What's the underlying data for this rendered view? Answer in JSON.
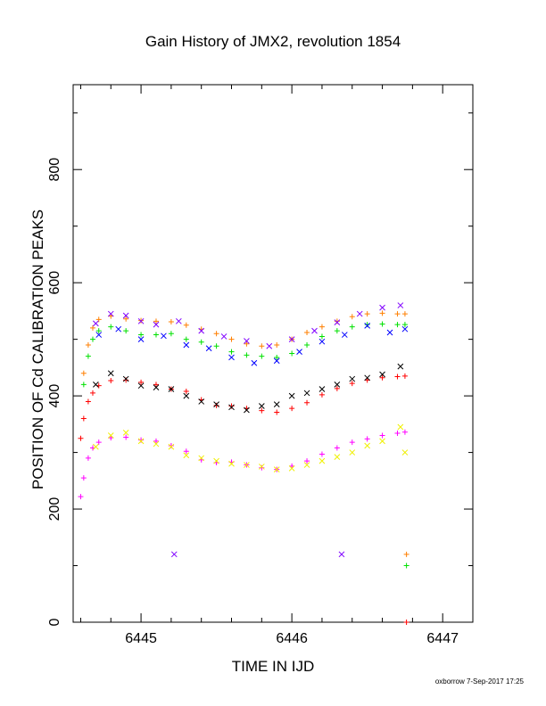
{
  "chart_data": {
    "type": "scatter",
    "title": "Gain History of JMX2, revolution 1854",
    "xlabel": "TIME IN IJD",
    "ylabel": "POSITION OF Cd CALIBRATION PEAKS",
    "xlim": [
      6444.55,
      6447.2
    ],
    "ylim": [
      0,
      950
    ],
    "x_ticks": [
      6445,
      6446,
      6447
    ],
    "y_ticks": [
      0,
      200,
      400,
      600,
      800
    ],
    "grid": false,
    "legend": "none",
    "footer": "oxborrow  7-Sep-2017 17:25",
    "colors": {
      "top_fit": "#ff7f00",
      "top_raw": "#8000ff",
      "upper_fit": "#00e000",
      "upper_raw": "#0000ff",
      "mid_fit": "#ff0000",
      "mid_raw": "#000000",
      "low_fit": "#ff00ff",
      "low_raw": "#f0f000"
    },
    "series": [
      {
        "color_key": "top_fit",
        "marker": "plus",
        "x": [
          6444.62,
          6444.65,
          6444.68,
          6444.72,
          6444.8,
          6444.9,
          6445.0,
          6445.1,
          6445.2,
          6445.3,
          6445.4,
          6445.5,
          6445.6,
          6445.7,
          6445.8,
          6445.9,
          6446.0,
          6446.1,
          6446.2,
          6446.3,
          6446.4,
          6446.5,
          6446.6,
          6446.7,
          6446.75
        ],
        "y": [
          440,
          490,
          520,
          535,
          541,
          536,
          533,
          532,
          531,
          525,
          518,
          510,
          500,
          492,
          488,
          490,
          500,
          512,
          522,
          532,
          540,
          545,
          546,
          545,
          545
        ]
      },
      {
        "color_key": "top_raw",
        "marker": "cross",
        "x": [
          6444.7,
          6444.8,
          6444.9,
          6445.0,
          6445.1,
          6445.25,
          6445.4,
          6445.55,
          6445.7,
          6445.85,
          6446.0,
          6446.15,
          6446.3,
          6446.45,
          6446.6,
          6446.72
        ],
        "y": [
          528,
          545,
          542,
          532,
          526,
          532,
          515,
          505,
          497,
          488,
          500,
          515,
          530,
          545,
          556,
          560
        ]
      },
      {
        "color_key": "upper_fit",
        "marker": "plus",
        "x": [
          6444.62,
          6444.65,
          6444.68,
          6444.72,
          6444.8,
          6444.9,
          6445.0,
          6445.1,
          6445.2,
          6445.3,
          6445.4,
          6445.5,
          6445.6,
          6445.7,
          6445.8,
          6445.9,
          6446.0,
          6446.1,
          6446.2,
          6446.3,
          6446.4,
          6446.5,
          6446.6,
          6446.7,
          6446.75
        ],
        "y": [
          420,
          470,
          500,
          515,
          522,
          515,
          508,
          508,
          510,
          500,
          495,
          488,
          478,
          472,
          470,
          468,
          475,
          490,
          505,
          515,
          522,
          526,
          527,
          526,
          526
        ]
      },
      {
        "color_key": "upper_raw",
        "marker": "cross",
        "x": [
          6444.72,
          6444.85,
          6445.0,
          6445.15,
          6445.3,
          6445.45,
          6445.6,
          6445.75,
          6445.9,
          6446.05,
          6446.2,
          6446.35,
          6446.5,
          6446.65,
          6446.75
        ],
        "y": [
          508,
          518,
          500,
          506,
          490,
          484,
          468,
          458,
          462,
          478,
          496,
          508,
          524,
          512,
          518
        ]
      },
      {
        "color_key": "mid_fit",
        "marker": "plus",
        "x": [
          6444.6,
          6444.62,
          6444.65,
          6444.68,
          6444.72,
          6444.8,
          6444.9,
          6445.0,
          6445.1,
          6445.2,
          6445.3,
          6445.4,
          6445.5,
          6445.6,
          6445.7,
          6445.8,
          6445.9,
          6446.0,
          6446.1,
          6446.2,
          6446.3,
          6446.4,
          6446.5,
          6446.6,
          6446.7,
          6446.75
        ],
        "y": [
          325,
          360,
          390,
          405,
          418,
          427,
          428,
          424,
          420,
          412,
          408,
          393,
          383,
          382,
          378,
          374,
          371,
          378,
          388,
          402,
          413,
          422,
          428,
          432,
          434,
          435
        ]
      },
      {
        "color_key": "mid_raw",
        "marker": "cross",
        "x": [
          6444.7,
          6444.8,
          6444.9,
          6445.0,
          6445.1,
          6445.2,
          6445.3,
          6445.4,
          6445.5,
          6445.6,
          6445.7,
          6445.8,
          6445.9,
          6446.0,
          6446.1,
          6446.2,
          6446.3,
          6446.4,
          6446.5,
          6446.6,
          6446.72
        ],
        "y": [
          420,
          440,
          430,
          418,
          415,
          412,
          400,
          390,
          385,
          380,
          375,
          382,
          385,
          400,
          405,
          412,
          420,
          430,
          432,
          438,
          452
        ]
      },
      {
        "color_key": "low_fit",
        "marker": "plus",
        "x": [
          6444.6,
          6444.62,
          6444.65,
          6444.68,
          6444.72,
          6444.8,
          6444.9,
          6445.0,
          6445.1,
          6445.2,
          6445.3,
          6445.4,
          6445.5,
          6445.6,
          6445.7,
          6445.8,
          6445.9,
          6446.0,
          6446.1,
          6446.2,
          6446.3,
          6446.4,
          6446.5,
          6446.6,
          6446.7,
          6446.75
        ],
        "y": [
          222,
          255,
          290,
          308,
          318,
          326,
          327,
          322,
          320,
          312,
          302,
          287,
          282,
          283,
          278,
          273,
          270,
          276,
          285,
          297,
          308,
          318,
          324,
          330,
          334,
          336
        ]
      },
      {
        "color_key": "low_raw",
        "marker": "cross",
        "x": [
          6444.7,
          6444.8,
          6444.9,
          6445.0,
          6445.1,
          6445.2,
          6445.3,
          6445.4,
          6445.5,
          6445.6,
          6445.7,
          6445.8,
          6445.9,
          6446.0,
          6446.1,
          6446.2,
          6446.3,
          6446.4,
          6446.5,
          6446.6,
          6446.72,
          6446.75
        ],
        "y": [
          310,
          330,
          335,
          320,
          315,
          310,
          295,
          290,
          285,
          280,
          278,
          275,
          270,
          272,
          278,
          285,
          292,
          300,
          312,
          320,
          345,
          300
        ]
      },
      {
        "color_key": "top_raw",
        "marker": "cross",
        "x": [
          6445.22,
          6446.33
        ],
        "y": [
          120,
          120
        ]
      },
      {
        "color_key": "top_fit",
        "marker": "plus",
        "x": [
          6446.76
        ],
        "y": [
          120
        ]
      },
      {
        "color_key": "upper_fit",
        "marker": "plus",
        "x": [
          6446.76
        ],
        "y": [
          100
        ]
      },
      {
        "color_key": "mid_fit",
        "marker": "plus",
        "x": [
          6446.76
        ],
        "y": [
          0
        ]
      }
    ]
  }
}
